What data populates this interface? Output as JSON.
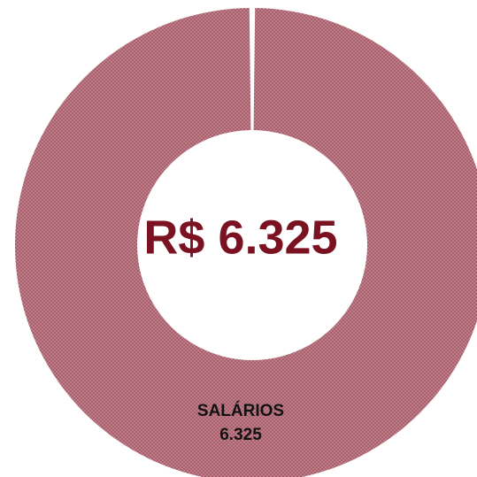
{
  "chart_data": {
    "type": "donut",
    "center_label": "R$ 6.325",
    "categories": [
      "SALÁRIOS"
    ],
    "values": [
      6325
    ],
    "value_labels": [
      "6.325"
    ],
    "colors": [
      "#a85a68"
    ]
  }
}
